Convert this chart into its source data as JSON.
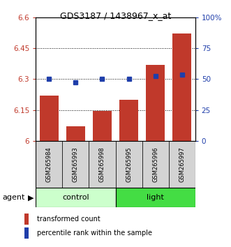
{
  "title": "GDS3187 / 1438967_x_at",
  "samples": [
    "GSM265984",
    "GSM265993",
    "GSM265998",
    "GSM265995",
    "GSM265996",
    "GSM265997"
  ],
  "bar_values": [
    6.22,
    6.07,
    6.145,
    6.2,
    6.37,
    6.52
  ],
  "percentile_values": [
    6.3,
    6.285,
    6.3,
    6.3,
    6.315,
    6.32
  ],
  "ylim_left": [
    6.0,
    6.6
  ],
  "ylim_right": [
    0,
    100
  ],
  "yticks_left": [
    6.0,
    6.15,
    6.3,
    6.45,
    6.6
  ],
  "ytick_labels_left": [
    "6",
    "6.15",
    "6.3",
    "6.45",
    "6.6"
  ],
  "yticks_right": [
    0,
    25,
    50,
    75,
    100
  ],
  "ytick_labels_right": [
    "0",
    "25",
    "50",
    "75",
    "100%"
  ],
  "bar_color": "#C0392B",
  "percentile_color": "#1F3EAA",
  "group_control": [
    0,
    1,
    2
  ],
  "group_light": [
    3,
    4,
    5
  ],
  "control_label": "control",
  "light_label": "light",
  "control_color": "#CCFFCC",
  "light_color": "#44DD44",
  "agent_label": "agent",
  "legend_bar_label": "transformed count",
  "legend_pct_label": "percentile rank within the sample",
  "bar_bottom": 6.0,
  "bar_width": 0.7,
  "fig_width": 3.31,
  "fig_height": 3.54,
  "dpi": 100
}
